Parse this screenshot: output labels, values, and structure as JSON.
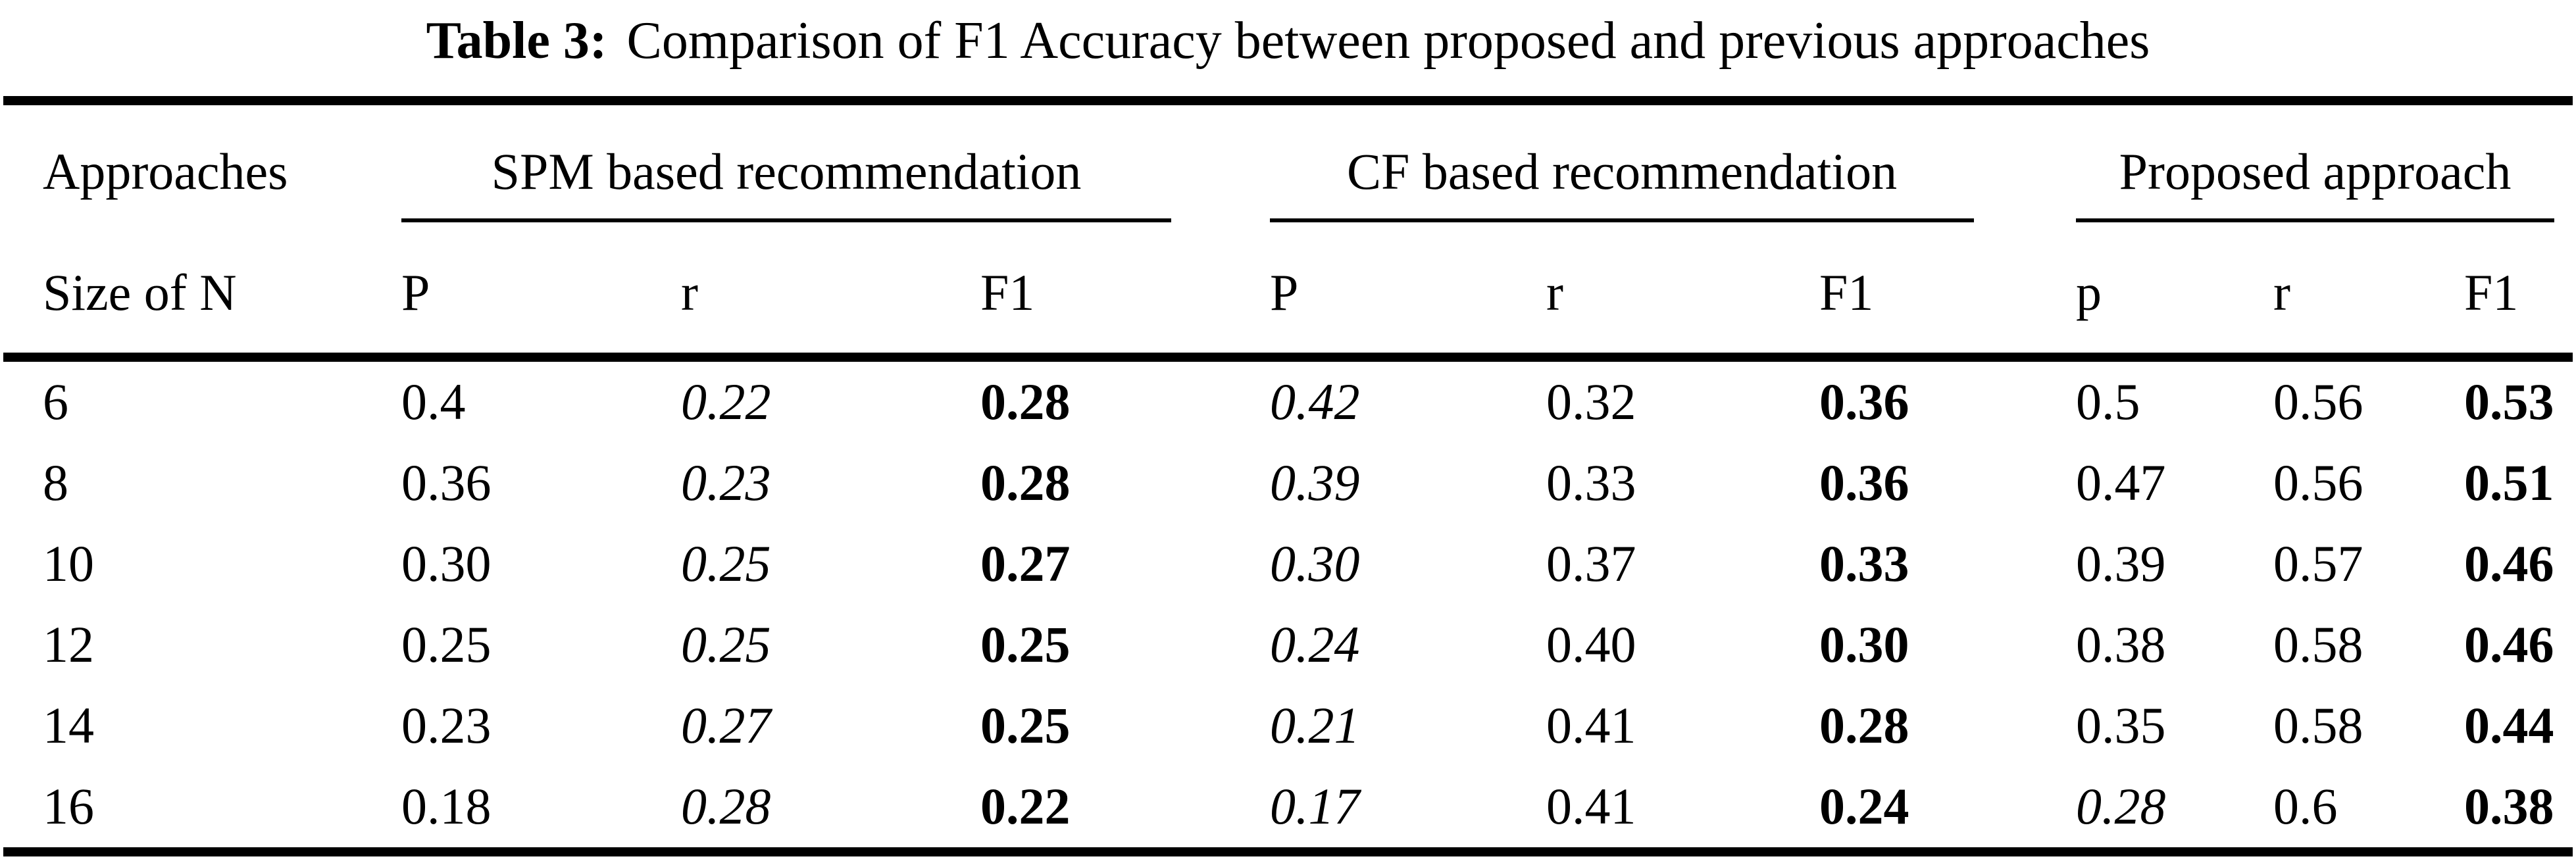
{
  "title": {
    "label": "Table 3:",
    "text": "Comparison of F1 Accuracy between proposed and previous approaches"
  },
  "header": {
    "col1_row1": "Approaches",
    "col1_row2": "Size of N",
    "groups": [
      {
        "label": "SPM based recommendation",
        "cols": [
          "P",
          "r",
          "F1"
        ]
      },
      {
        "label": "CF based recommendation",
        "cols": [
          "P",
          "r",
          "F1"
        ]
      },
      {
        "label": "Proposed approach",
        "cols": [
          "p",
          "r",
          "F1"
        ]
      }
    ]
  },
  "rows": [
    {
      "n": "6",
      "cells": [
        {
          "v": "0.4",
          "style": "normal"
        },
        {
          "v": "0.22",
          "style": "italic"
        },
        {
          "v": "0.28",
          "style": "bold"
        },
        {
          "v": "0.42",
          "style": "italic"
        },
        {
          "v": "0.32",
          "style": "normal"
        },
        {
          "v": "0.36",
          "style": "bold"
        },
        {
          "v": "0.5",
          "style": "normal"
        },
        {
          "v": "0.56",
          "style": "normal"
        },
        {
          "v": "0.53",
          "style": "bold"
        }
      ]
    },
    {
      "n": "8",
      "cells": [
        {
          "v": "0.36",
          "style": "normal"
        },
        {
          "v": "0.23",
          "style": "italic"
        },
        {
          "v": "0.28",
          "style": "bold"
        },
        {
          "v": "0.39",
          "style": "italic"
        },
        {
          "v": "0.33",
          "style": "normal"
        },
        {
          "v": "0.36",
          "style": "bold"
        },
        {
          "v": "0.47",
          "style": "normal"
        },
        {
          "v": "0.56",
          "style": "normal"
        },
        {
          "v": "0.51",
          "style": "bold"
        }
      ]
    },
    {
      "n": "10",
      "cells": [
        {
          "v": "0.30",
          "style": "normal"
        },
        {
          "v": "0.25",
          "style": "italic"
        },
        {
          "v": "0.27",
          "style": "bold"
        },
        {
          "v": "0.30",
          "style": "italic"
        },
        {
          "v": "0.37",
          "style": "normal"
        },
        {
          "v": "0.33",
          "style": "bold"
        },
        {
          "v": "0.39",
          "style": "normal"
        },
        {
          "v": "0.57",
          "style": "normal"
        },
        {
          "v": "0.46",
          "style": "bold"
        }
      ]
    },
    {
      "n": "12",
      "cells": [
        {
          "v": "0.25",
          "style": "normal"
        },
        {
          "v": "0.25",
          "style": "italic"
        },
        {
          "v": "0.25",
          "style": "bold"
        },
        {
          "v": "0.24",
          "style": "italic"
        },
        {
          "v": "0.40",
          "style": "normal"
        },
        {
          "v": "0.30",
          "style": "bold"
        },
        {
          "v": "0.38",
          "style": "normal"
        },
        {
          "v": "0.58",
          "style": "normal"
        },
        {
          "v": "0.46",
          "style": "bold"
        }
      ]
    },
    {
      "n": "14",
      "cells": [
        {
          "v": "0.23",
          "style": "normal"
        },
        {
          "v": "0.27",
          "style": "italic"
        },
        {
          "v": "0.25",
          "style": "bold"
        },
        {
          "v": "0.21",
          "style": "italic"
        },
        {
          "v": "0.41",
          "style": "normal"
        },
        {
          "v": "0.28",
          "style": "bold"
        },
        {
          "v": "0.35",
          "style": "normal"
        },
        {
          "v": "0.58",
          "style": "normal"
        },
        {
          "v": "0.44",
          "style": "bold"
        }
      ]
    },
    {
      "n": "16",
      "cells": [
        {
          "v": "0.18",
          "style": "normal"
        },
        {
          "v": "0.28",
          "style": "italic"
        },
        {
          "v": "0.22",
          "style": "bold"
        },
        {
          "v": "0.17",
          "style": "italic"
        },
        {
          "v": "0.41",
          "style": "normal"
        },
        {
          "v": "0.24",
          "style": "bold"
        },
        {
          "v": "0.28",
          "style": "italic"
        },
        {
          "v": "0.6",
          "style": "normal"
        },
        {
          "v": "0.38",
          "style": "bold"
        }
      ]
    }
  ],
  "colors": {
    "text": "#000000",
    "background": "#ffffff",
    "rule": "#000000"
  }
}
